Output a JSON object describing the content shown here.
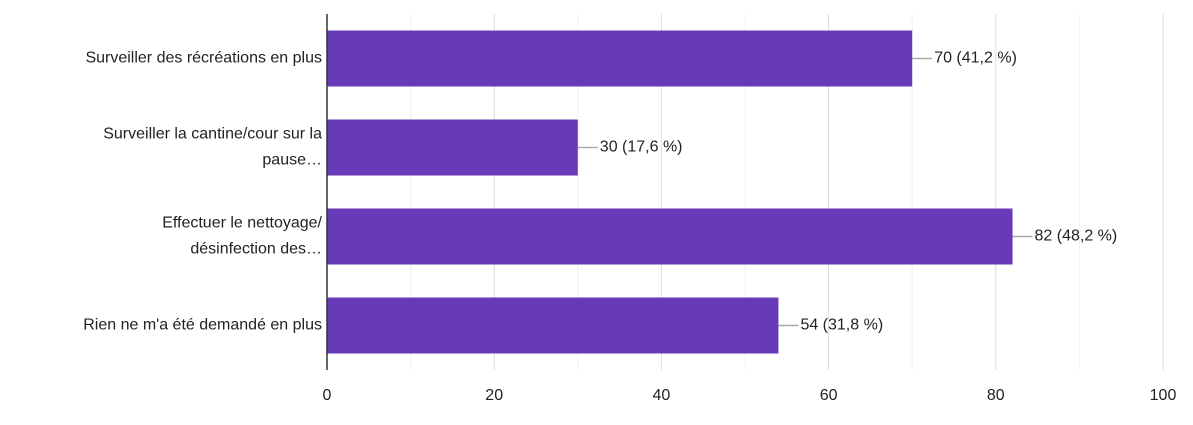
{
  "chart_data": {
    "type": "hbar",
    "categories": [
      "Surveiller des récréations en plus",
      "Surveiller la cantine/cour sur la\npause…",
      "Effectuer le nettoyage/\ndésinfection des…",
      "Rien ne m'a été demandé en plus"
    ],
    "values": [
      70,
      30,
      82,
      54
    ],
    "value_labels": [
      "70 (41,2 %)",
      "30 (17,6 %)",
      "82 (48,2 %)",
      "54 (31,8 %)"
    ],
    "color": "#673ab7",
    "xlim": [
      0,
      100
    ],
    "xticks": [
      0,
      20,
      40,
      60,
      80,
      100
    ],
    "x_minor_gridlines": [
      10,
      30,
      50,
      70,
      90
    ],
    "grid": true
  }
}
